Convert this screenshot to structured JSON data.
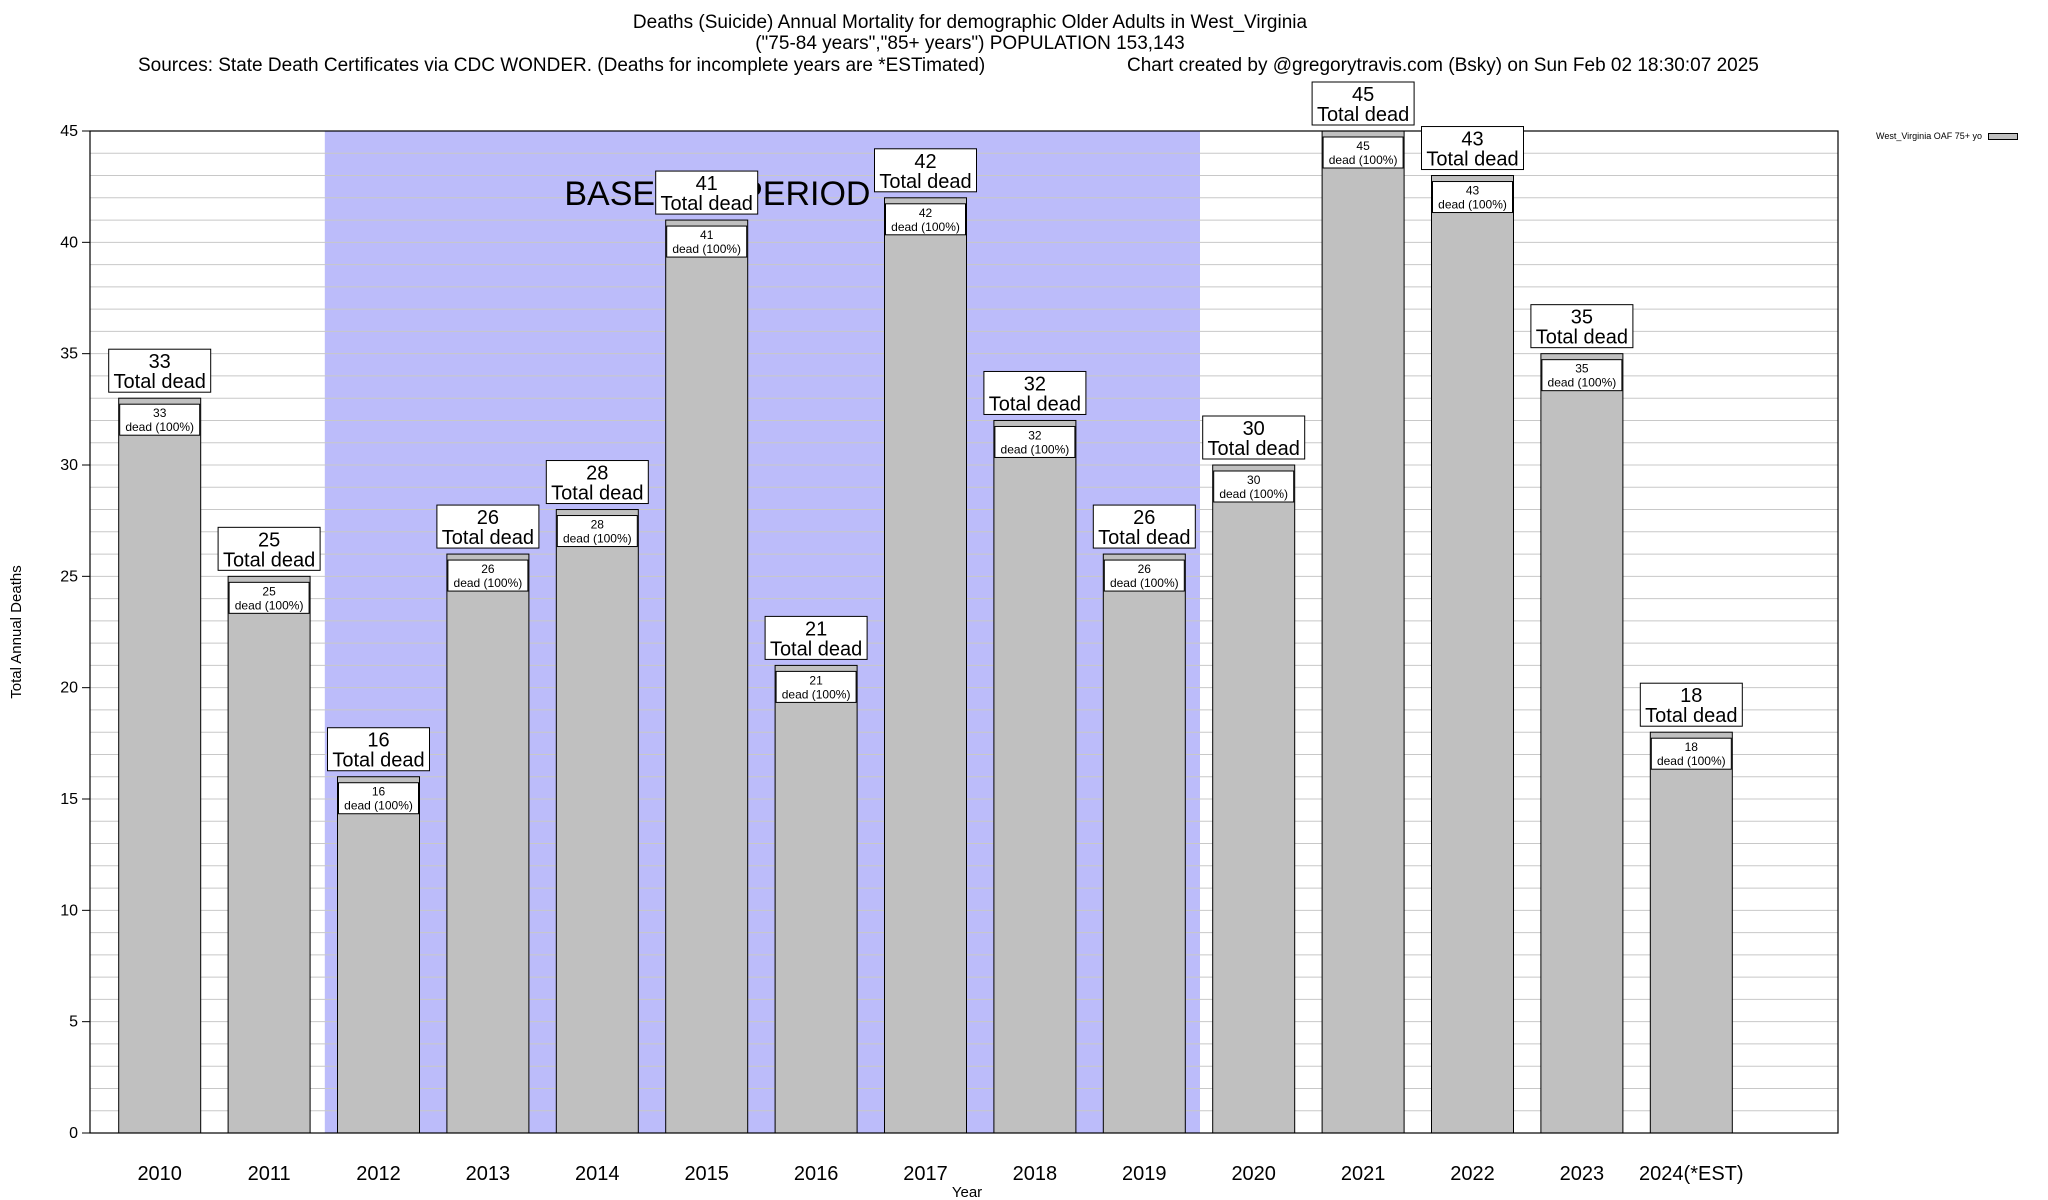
{
  "header": {
    "title_line1": "Deaths (Suicide) Annual Mortality for demographic Older Adults in West_Virginia",
    "title_line2": "(\"75-84 years\",\"85+ years\") POPULATION 153,143",
    "sources": "Sources: State Death Certificates via CDC WONDER. (Deaths for incomplete years are *ESTimated)",
    "credit": "Chart created by @gregorytravis.com (Bsky) on Sun Feb 02 18:30:07 2025"
  },
  "chart_data": {
    "type": "bar",
    "categories": [
      "2010",
      "2011",
      "2012",
      "2013",
      "2014",
      "2015",
      "2016",
      "2017",
      "2018",
      "2019",
      "2020",
      "2021",
      "2022",
      "2023",
      "2024(*EST)"
    ],
    "series": [
      {
        "name": "West_Virginia OAF 75+ yo",
        "values": [
          33,
          25,
          16,
          26,
          28,
          41,
          21,
          42,
          32,
          26,
          30,
          45,
          43,
          35,
          18
        ]
      }
    ],
    "total_label": "Total dead",
    "inner_label": "dead (100%)",
    "baseline": {
      "label": "BASELINE PERIOD",
      "from": "2012",
      "to": "2019"
    },
    "xlabel": "Year",
    "ylabel": "Total Annual Deaths",
    "ylim": [
      0,
      45
    ],
    "yticks": [
      0,
      5,
      10,
      15,
      20,
      25,
      30,
      35,
      40,
      45
    ],
    "grid": true,
    "legend_position": "top-right",
    "colors": {
      "bar": "#c0c0c0",
      "baseline": "#bcbcfa",
      "grid": "#c8c8c8"
    }
  }
}
